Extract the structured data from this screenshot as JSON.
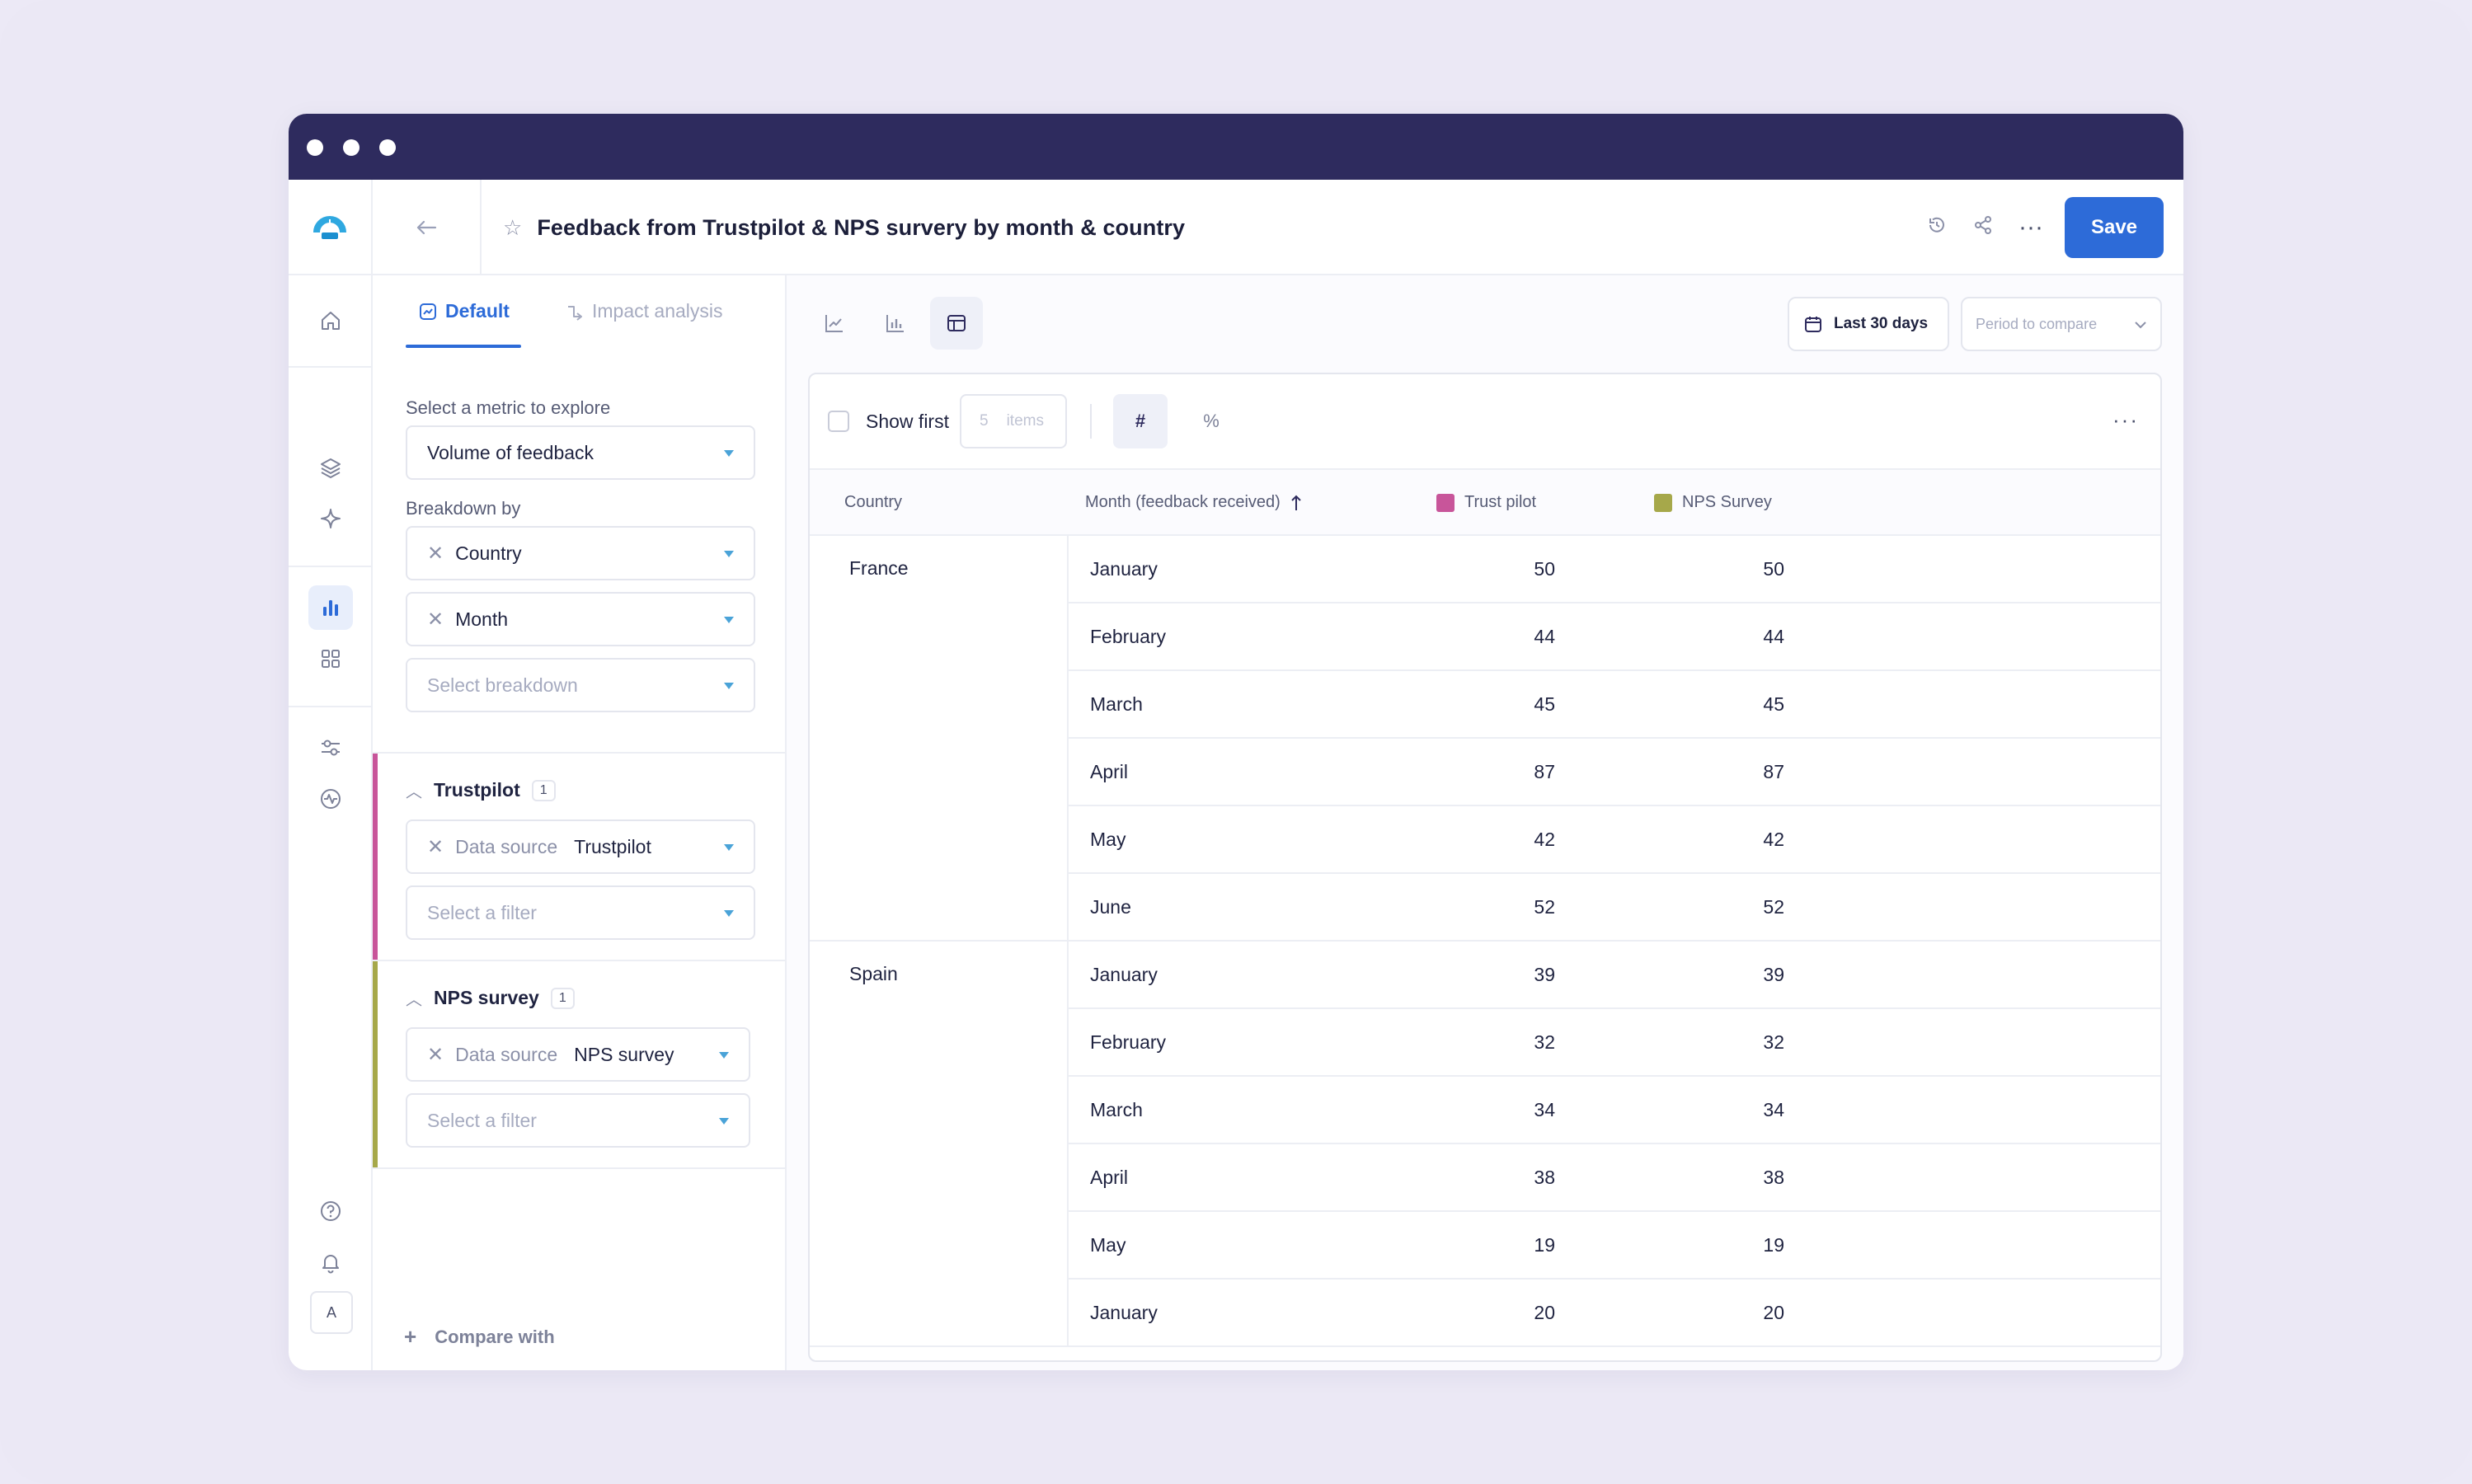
{
  "header": {
    "title": "Feedback from Trustpilot & NPS survery by month & country",
    "save_label": "Save"
  },
  "avatar_initial": "A",
  "panel": {
    "tabs": [
      {
        "label": "Default",
        "active": true
      },
      {
        "label": "Impact analysis",
        "active": false
      }
    ],
    "metric_label": "Select a metric to explore",
    "metric_value": "Volume of feedback",
    "breakdown_label": "Breakdown by",
    "breakdowns": [
      "Country",
      "Month"
    ],
    "breakdown_placeholder": "Select breakdown",
    "groups": [
      {
        "name": "Trustpilot",
        "count": "1",
        "color": "#c8559a",
        "filter_key": "Data source",
        "filter_value": "Trustpilot",
        "filter_placeholder": "Select a filter"
      },
      {
        "name": "NPS survey",
        "count": "1",
        "color": "#a6a84a",
        "filter_key": "Data source",
        "filter_value": "NPS survey",
        "filter_placeholder": "Select a filter"
      }
    ],
    "compare_label": "Compare with"
  },
  "toolbar": {
    "date_range": "Last 30 days",
    "compare_placeholder": "Period to compare"
  },
  "table_tools": {
    "show_first_label": "Show first",
    "items_count": "5",
    "items_label": "items",
    "hash_label": "#",
    "percent_label": "%"
  },
  "table": {
    "columns": [
      "Country",
      "Month (feedback received)",
      "Trust pilot",
      "NPS Survey"
    ],
    "series_colors": [
      "#c8559a",
      "#a6a84a"
    ],
    "groups": [
      {
        "country": "France",
        "rows": [
          {
            "month": "January",
            "trust": "50",
            "nps": "50"
          },
          {
            "month": "February",
            "trust": "44",
            "nps": "44"
          },
          {
            "month": "March",
            "trust": "45",
            "nps": "45"
          },
          {
            "month": "April",
            "trust": "87",
            "nps": "87"
          },
          {
            "month": "May",
            "trust": "42",
            "nps": "42"
          },
          {
            "month": "June",
            "trust": "52",
            "nps": "52"
          }
        ]
      },
      {
        "country": "Spain",
        "rows": [
          {
            "month": "January",
            "trust": "39",
            "nps": "39"
          },
          {
            "month": "February",
            "trust": "32",
            "nps": "32"
          },
          {
            "month": "March",
            "trust": "34",
            "nps": "34"
          },
          {
            "month": "April",
            "trust": "38",
            "nps": "38"
          },
          {
            "month": "May",
            "trust": "19",
            "nps": "19"
          },
          {
            "month": "January",
            "trust": "20",
            "nps": "20"
          }
        ]
      }
    ]
  }
}
